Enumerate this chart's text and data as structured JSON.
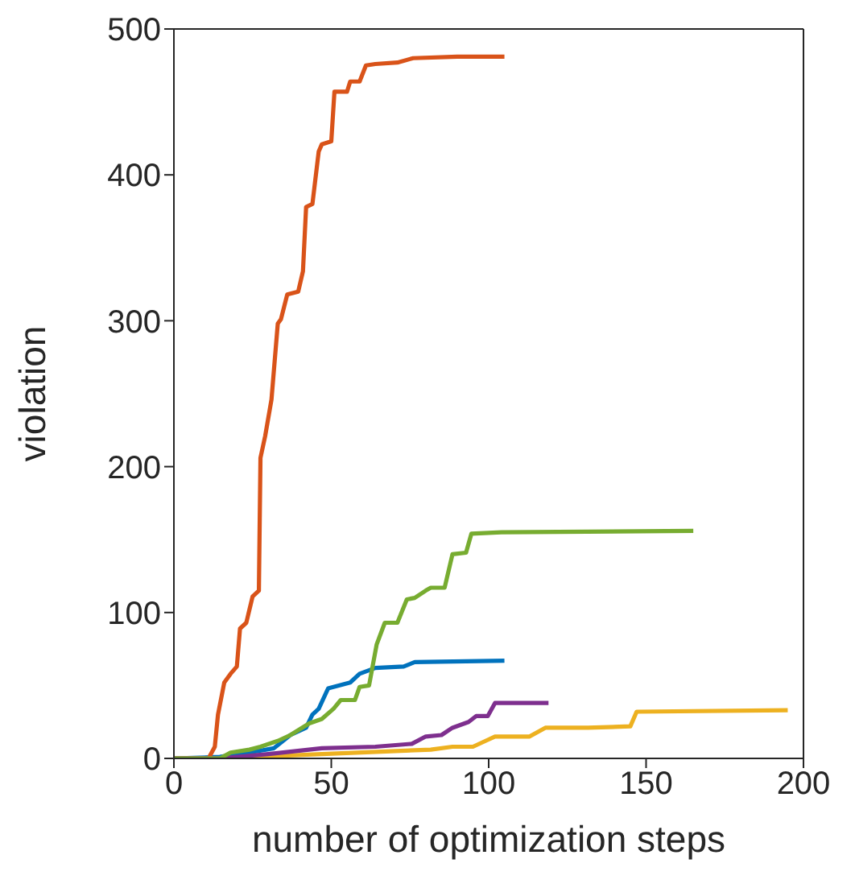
{
  "chart_data": {
    "type": "line",
    "xlabel": "number of optimization steps",
    "ylabel": "violation",
    "xlim": [
      0,
      200
    ],
    "xticks": [
      0,
      50,
      100,
      150,
      200
    ],
    "ylim": [
      0,
      500
    ],
    "yticks": [
      0,
      100,
      200,
      300,
      400,
      500
    ],
    "marker": "none",
    "line_style": "solid",
    "series": [
      {
        "color": "#0072bd",
        "x": [
          0,
          14.6,
          26.6,
          31.8,
          37,
          42,
          44,
          46,
          49,
          56,
          59,
          64,
          73,
          76.5,
          105
        ],
        "values": [
          0,
          1,
          5,
          7,
          16,
          21,
          30,
          34,
          48,
          52,
          58,
          62,
          63,
          66,
          67
        ]
      },
      {
        "color": "#d95319",
        "x": [
          0,
          11,
          13,
          14,
          16,
          18,
          20,
          21,
          23,
          25,
          27,
          27.5,
          29,
          31,
          33,
          34,
          36,
          39.5,
          41,
          42,
          44,
          46,
          47,
          50,
          51,
          55,
          56,
          59,
          61,
          64,
          71,
          76,
          90,
          105
        ],
        "values": [
          0,
          0,
          8,
          30,
          52,
          58,
          63,
          89,
          93,
          111,
          115,
          206,
          221,
          246,
          298,
          301,
          318,
          320,
          334,
          378,
          380,
          416,
          421,
          423,
          457,
          457,
          464,
          464,
          475,
          476,
          477,
          480,
          481,
          481
        ]
      },
      {
        "color": "#edb120",
        "x": [
          0,
          14.6,
          47,
          81.6,
          88.5,
          95,
          99,
          102,
          113,
          118,
          131.5,
          145,
          147,
          195
        ],
        "values": [
          0,
          0,
          3,
          6,
          8,
          8,
          12,
          15,
          15,
          21,
          21,
          22,
          32,
          33
        ]
      },
      {
        "color": "#7e2f8e",
        "x": [
          0,
          14.6,
          30,
          47,
          64,
          75.6,
          80,
          85,
          88.5,
          93.6,
          96,
          99.7,
          102,
          119
        ],
        "values": [
          0,
          0,
          3,
          7,
          8,
          10,
          15,
          16,
          21,
          25,
          29,
          29,
          38,
          38
        ]
      },
      {
        "color": "#77ac30",
        "x": [
          0,
          14.6,
          18,
          24,
          27.5,
          33,
          37,
          43,
          47,
          50.7,
          53,
          57.5,
          59,
          62,
          64.4,
          67,
          71,
          74,
          76.5,
          80,
          81.6,
          86,
          88.5,
          92.8,
          94.5,
          104,
          165
        ],
        "values": [
          0,
          0,
          4,
          6,
          8,
          12,
          16,
          24,
          27,
          34,
          40,
          40,
          49,
          50,
          78,
          93,
          93,
          109,
          110,
          115,
          117,
          117,
          140,
          141,
          154,
          155,
          156
        ]
      }
    ]
  }
}
